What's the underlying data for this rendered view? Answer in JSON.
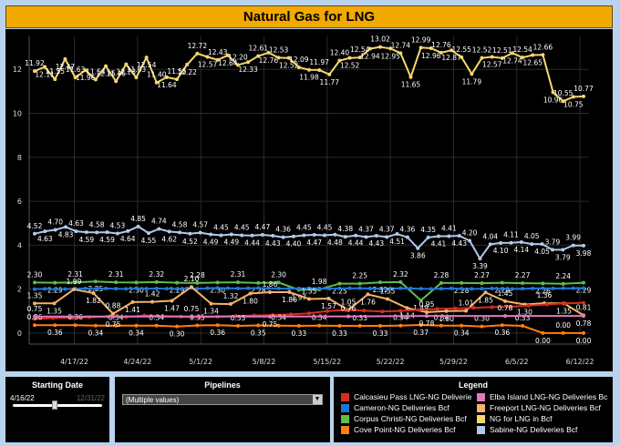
{
  "title": "Natural Gas for LNG",
  "filters": {
    "starting_date": {
      "label": "Starting Date",
      "start": "4/16/22",
      "end": "12/31/22",
      "value": 0.47
    },
    "pipelines": {
      "label": "Pipelines",
      "selected": "(Multiple values)"
    }
  },
  "legend": {
    "title": "Legend",
    "items": [
      {
        "label": "Calcasieu Pass LNG-NG Deliveries ..",
        "color": "#d62d20"
      },
      {
        "label": "Elba Island LNG-NG Deliveries Bcf",
        "color": "#e377c2"
      },
      {
        "label": "Cameron-NG Deliveries Bcf",
        "color": "#1f77d4"
      },
      {
        "label": "Freeport LNG-NG Deliveries Bcf",
        "color": "#f7b26a"
      },
      {
        "label": "Corpus Christi-NG Deliveries Bcf",
        "color": "#5cbf4a"
      },
      {
        "label": "NG for LNG in Bcf",
        "color": "#f5d76e"
      },
      {
        "label": "Cove Point-NG Deliveries Bcf",
        "color": "#ff7f0e"
      },
      {
        "label": "Sabine-NG Deliveries Bcf",
        "color": "#aecbea"
      }
    ]
  },
  "chart_data": {
    "type": "line",
    "x_start": "4/12/22",
    "x_end": "6/13/22",
    "x_ticks": [
      "4/17/22",
      "4/24/22",
      "5/1/22",
      "5/8/22",
      "5/15/22",
      "5/22/22",
      "5/29/22",
      "6/5/22",
      "6/12/22"
    ],
    "ylim": [
      -0.5,
      13.5
    ],
    "y_ticks": [
      0,
      2,
      4,
      6,
      8,
      10,
      12
    ],
    "grid": true,
    "series": [
      {
        "name": "NG for LNG in Bcf",
        "color": "#f5d76e",
        "label_every": 1,
        "values": [
          11.92,
          12.11,
          11.55,
          12.47,
          11.63,
          11.96,
          11.54,
          12.15,
          11.46,
          12.23,
          11.63,
          12.54,
          11.4,
          11.64,
          11.55,
          12.22,
          12.72,
          12.57,
          12.43,
          12.64,
          12.2,
          12.33,
          12.61,
          12.76,
          12.53,
          12.52,
          12.09,
          11.98,
          11.97,
          11.77,
          12.4,
          12.52,
          12.54,
          12.94,
          13.02,
          12.95,
          12.74,
          11.65,
          12.99,
          12.96,
          12.76,
          12.87,
          12.55,
          11.79,
          12.52,
          12.57,
          12.51,
          12.74,
          12.54,
          12.65,
          12.66,
          10.96,
          10.55,
          10.75,
          10.77
        ]
      },
      {
        "name": "Sabine-NG Deliveries Bcf",
        "color": "#aecbea",
        "label_every": 1,
        "values": [
          4.52,
          4.63,
          4.7,
          4.83,
          4.63,
          4.59,
          4.58,
          4.59,
          4.53,
          4.64,
          4.85,
          4.55,
          4.74,
          4.62,
          4.58,
          4.52,
          4.57,
          4.49,
          4.45,
          4.49,
          4.45,
          4.44,
          4.47,
          4.43,
          4.36,
          4.4,
          4.45,
          4.47,
          4.45,
          4.48,
          4.38,
          4.44,
          4.37,
          4.43,
          4.37,
          4.51,
          4.36,
          3.86,
          4.35,
          4.41,
          4.41,
          4.43,
          4.2,
          3.39,
          4.04,
          4.1,
          4.11,
          4.14,
          4.05,
          4.05,
          3.79,
          3.79,
          3.99,
          3.98
        ]
      },
      {
        "name": "Corpus Christi-NG Deliveries Bcf",
        "color": "#5cbf4a",
        "label_every": 1,
        "values": [
          2.3,
          2.29,
          2.31,
          2.35,
          2.31,
          2.3,
          2.32,
          2.29,
          2.28,
          2.3,
          2.31,
          2.28,
          2.3,
          1.97,
          1.98,
          2.25,
          2.25,
          2.31,
          2.32,
          1.49,
          2.28,
          2.28,
          2.27,
          2.29,
          2.27,
          2.26,
          2.24,
          2.29
        ]
      },
      {
        "name": "Cameron-NG Deliveries Bcf",
        "color": "#1f77d4",
        "label_every": 0,
        "values": [
          2.0,
          2.01,
          1.99,
          2.0,
          2.02,
          2.03,
          2.01,
          2.03,
          2.02,
          2.01,
          2.04,
          2.02,
          2.03,
          2.02,
          2.01,
          2.03,
          2.02,
          2.04,
          2.05,
          2.04,
          2.03,
          2.04,
          2.05,
          2.04,
          2.03,
          2.02,
          2.03,
          2.04,
          2.03,
          2.02,
          2.03,
          2.04,
          2.04,
          2.03,
          2.02,
          2.03,
          2.04,
          2.03,
          2.02,
          2.01,
          2.02,
          2.03,
          2.02,
          2.01,
          2.02,
          2.03,
          2.02,
          2.01,
          2.02,
          2.03,
          2.04,
          2.03,
          2.04,
          2.04,
          2.04
        ]
      },
      {
        "name": "Freeport LNG-NG Deliveries Bcf",
        "color": "#f7b26a",
        "label_every": 1,
        "values": [
          1.35,
          1.35,
          1.99,
          1.82,
          0.88,
          1.41,
          1.42,
          1.47,
          2.1,
          1.34,
          1.32,
          1.8,
          1.86,
          1.86,
          1.55,
          1.57,
          1.05,
          1.76,
          1.55,
          1.14,
          0.95,
          1.0,
          1.01,
          1.85,
          1.45,
          1.3,
          1.36,
          1.35,
          0.81
        ]
      },
      {
        "name": "Calcasieu Pass LNG-NG Deliveries ..",
        "color": "#d62d20",
        "label_every": 0,
        "values": [
          0.64,
          0.68,
          0.7,
          0.72,
          0.75,
          0.74,
          0.8,
          0.78,
          0.75,
          0.72,
          0.75,
          0.78,
          0.8,
          0.82,
          0.85,
          0.9,
          1.0,
          1.05,
          1.02,
          0.98,
          1.01,
          1.05,
          1.1,
          1.12,
          1.15,
          1.18,
          1.2,
          1.25,
          1.3,
          1.35,
          1.38
        ]
      },
      {
        "name": "Cove Point-NG Deliveries Bcf",
        "color": "#ff7f0e",
        "label_every": 1,
        "values": [
          0.36,
          0.36,
          0.36,
          0.34,
          0.34,
          0.34,
          0.34,
          0.3,
          0.35,
          0.36,
          0.33,
          0.35,
          0.34,
          0.33,
          0.34,
          0.33,
          0.33,
          0.33,
          0.34,
          0.37,
          0.34,
          0.34,
          0.3,
          0.36,
          0.33,
          0.0,
          0.0,
          0.0
        ]
      },
      {
        "name": "Elba Island LNG-NG Deliveries Bcf",
        "color": "#e377c2",
        "label_every": 1,
        "values": [
          0.75,
          0.75,
          0.75,
          0.75,
          0.76,
          0.78,
          0.78,
          0.78
        ]
      }
    ]
  }
}
